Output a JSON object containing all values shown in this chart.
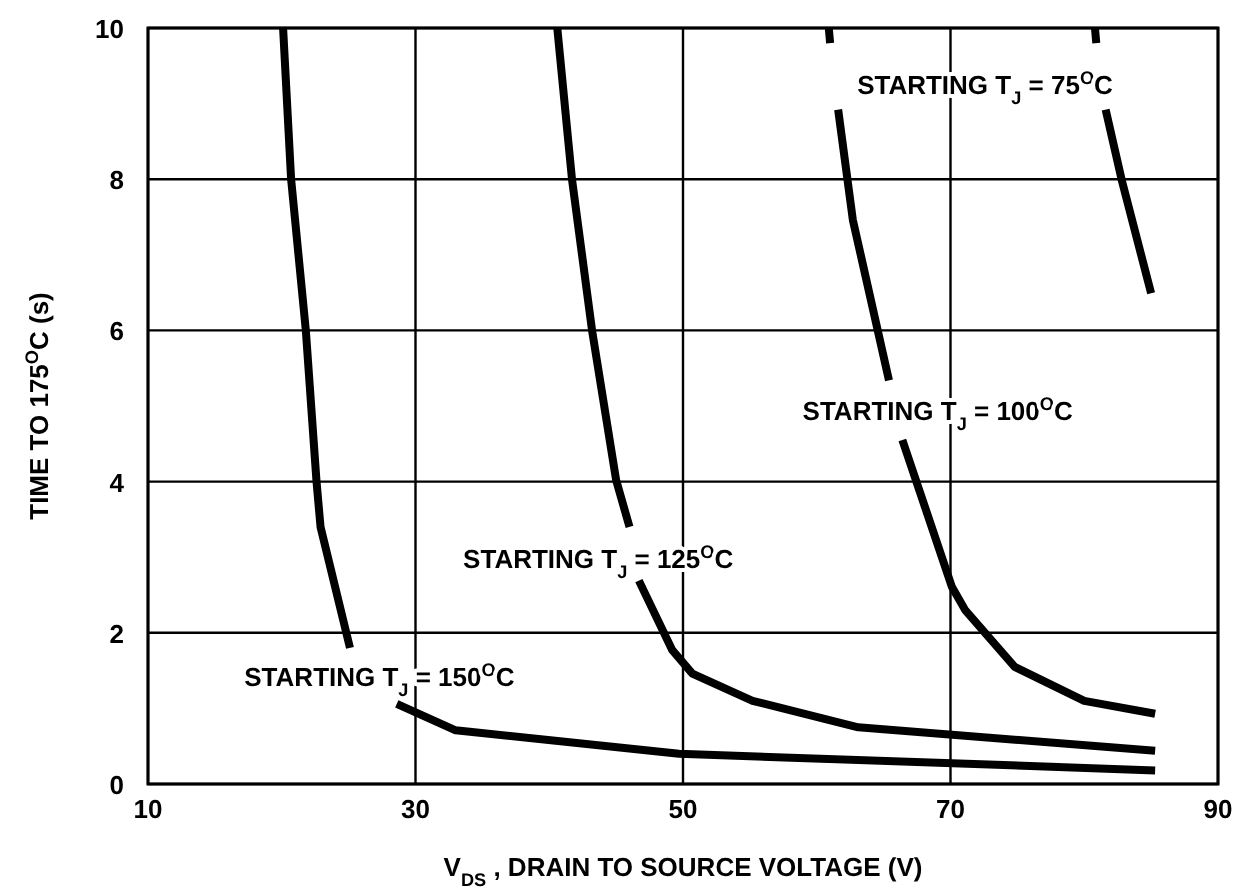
{
  "chart_data": {
    "type": "line",
    "xlabel": "V$_{DS}$ , DRAIN TO SOURCE VOLTAGE (V)",
    "ylabel": "TIME TO 175$^{O}$C (s)",
    "xlim": [
      10,
      90
    ],
    "xticks": [
      10,
      30,
      50,
      70,
      90
    ],
    "ylim": [
      0,
      10
    ],
    "yticks": [
      0,
      2,
      4,
      6,
      8,
      10
    ],
    "grid": true,
    "marker": "none",
    "line_style": "solid",
    "series": [
      {
        "name": "STARTING T$_{J}$ = 150$^{O}$C",
        "color": "#000000",
        "x": [
          20.1,
          20.7,
          21.8,
          22.6,
          22.9,
          25.1,
          27,
          28.6,
          33.0,
          49.7,
          85.3
        ],
        "values": [
          10,
          8,
          6,
          4,
          3.4,
          1.8,
          null,
          1.06,
          0.71,
          0.4,
          0.18
        ]
      },
      {
        "name": "STARTING T$_{J}$ = 125$^{O}$C",
        "color": "#000000",
        "x": [
          40.6,
          41.7,
          43.2,
          45.0,
          46.0,
          46.4,
          46.7,
          49.2,
          50.7,
          55.2,
          63.1,
          85.3
        ],
        "values": [
          10,
          8,
          6,
          4.02,
          3.4,
          null,
          2.69,
          1.77,
          1.46,
          1.1,
          0.75,
          0.44
        ]
      },
      {
        "name": "STARTING T$_{J}$ = 100$^{O}$C",
        "color": "#000000",
        "x": [
          60.9,
          61.0,
          61.3,
          61.6,
          62.7,
          65.4,
          65.9,
          66.4,
          70.1,
          71.1,
          74.8,
          80.0,
          85.3
        ],
        "values": [
          10,
          9.8,
          null,
          8.92,
          7.46,
          5.34,
          null,
          4.55,
          2.61,
          2.3,
          1.55,
          1.1,
          0.93
        ]
      },
      {
        "name": "STARTING T$_{J}$ = 75$^{O}$C",
        "color": "#000000",
        "x": [
          80.8,
          80.9,
          81.2,
          81.6,
          82.8,
          85.0
        ],
        "values": [
          10,
          9.8,
          null,
          8.92,
          7.99,
          6.49
        ]
      }
    ]
  }
}
